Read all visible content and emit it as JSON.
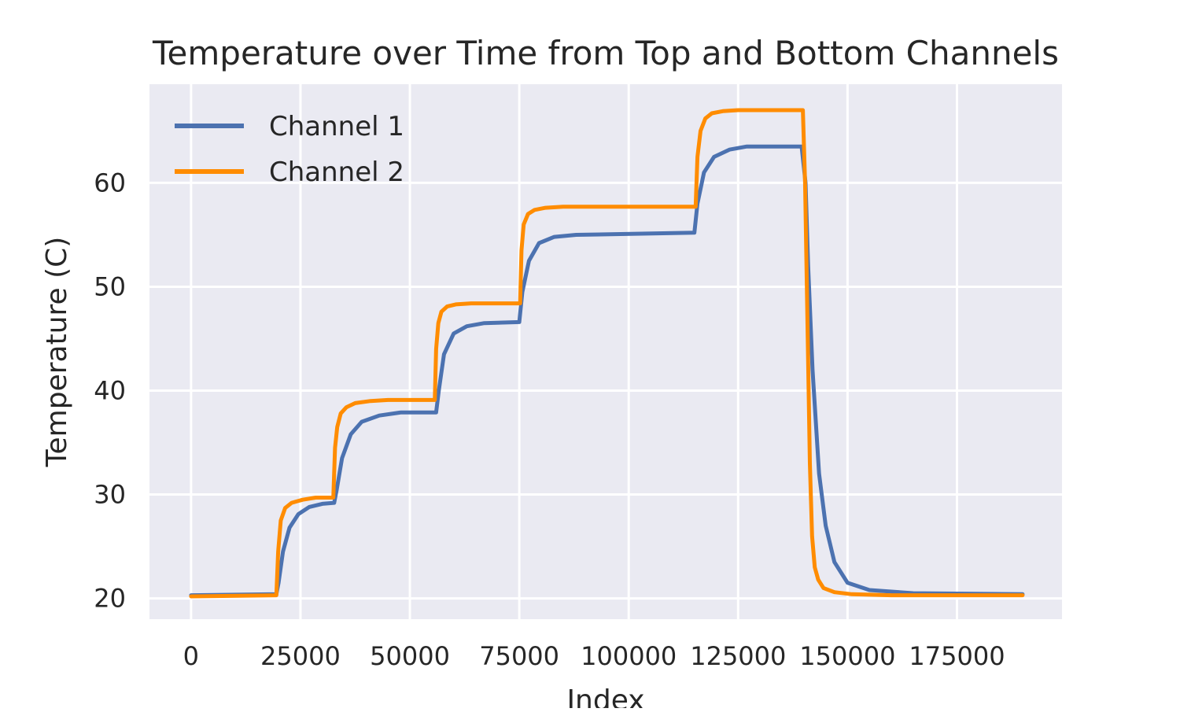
{
  "chart_data": {
    "type": "line",
    "title": "Temperature over Time from Top and Bottom Channels",
    "xlabel": "Index",
    "ylabel": "Temperature (C)",
    "xlim": [
      -9500,
      199000
    ],
    "ylim": [
      18,
      69.5
    ],
    "xticks": [
      0,
      25000,
      50000,
      75000,
      100000,
      125000,
      150000,
      175000
    ],
    "xtick_labels": [
      "0",
      "25000",
      "50000",
      "75000",
      "100000",
      "125000",
      "150000",
      "175000"
    ],
    "yticks": [
      20,
      30,
      40,
      50,
      60
    ],
    "ytick_labels": [
      "20",
      "30",
      "40",
      "50",
      "60"
    ],
    "grid": true,
    "legend_position": "top-left",
    "background_color": "#eaeaf2",
    "series": [
      {
        "name": "Channel 1",
        "color": "#4c72b0",
        "x": [
          0,
          19500,
          20000,
          21000,
          22500,
          24500,
          27000,
          30000,
          32700,
          33300,
          34500,
          36500,
          39000,
          43000,
          48000,
          56000,
          56600,
          57800,
          60000,
          63000,
          67000,
          75000,
          75700,
          77200,
          79500,
          83000,
          88000,
          115000,
          115700,
          117200,
          119500,
          123000,
          127000,
          139500,
          140400,
          141000,
          142000,
          143500,
          145000,
          147000,
          150000,
          155000,
          165000,
          190000
        ],
        "y": [
          20.3,
          20.4,
          21.5,
          24.5,
          26.8,
          28.1,
          28.8,
          29.1,
          29.2,
          30.5,
          33.5,
          35.8,
          37.0,
          37.6,
          37.9,
          37.9,
          40.0,
          43.5,
          45.5,
          46.2,
          46.5,
          46.6,
          49.5,
          52.5,
          54.2,
          54.8,
          55.0,
          55.2,
          58.0,
          61.0,
          62.5,
          63.2,
          63.5,
          63.5,
          60.0,
          52.0,
          42.0,
          32.0,
          27.0,
          23.5,
          21.5,
          20.8,
          20.5,
          20.4
        ]
      },
      {
        "name": "Channel 2",
        "color": "#ff8c00",
        "x": [
          0,
          19500,
          19900,
          20500,
          21500,
          23000,
          25500,
          28500,
          32500,
          32900,
          33400,
          34200,
          35500,
          37500,
          41000,
          45000,
          55700,
          56000,
          56500,
          57200,
          58500,
          60500,
          64000,
          75200,
          75500,
          76000,
          77000,
          78500,
          81000,
          85000,
          115300,
          115700,
          116400,
          117500,
          119000,
          121500,
          125000,
          139800,
          140300,
          140900,
          141400,
          141900,
          142500,
          143300,
          144500,
          147000,
          151000,
          160000,
          190000
        ],
        "y": [
          20.2,
          20.3,
          24.5,
          27.5,
          28.7,
          29.2,
          29.5,
          29.7,
          29.7,
          34.5,
          36.5,
          37.8,
          38.4,
          38.8,
          39.0,
          39.1,
          39.1,
          44.0,
          46.5,
          47.6,
          48.1,
          48.3,
          48.4,
          48.4,
          53.5,
          56.0,
          57.0,
          57.4,
          57.6,
          57.7,
          57.7,
          62.5,
          65.0,
          66.2,
          66.7,
          66.9,
          67.0,
          67.0,
          60.0,
          45.0,
          33.0,
          26.0,
          23.0,
          21.8,
          21.0,
          20.6,
          20.4,
          20.3,
          20.3
        ]
      }
    ]
  }
}
